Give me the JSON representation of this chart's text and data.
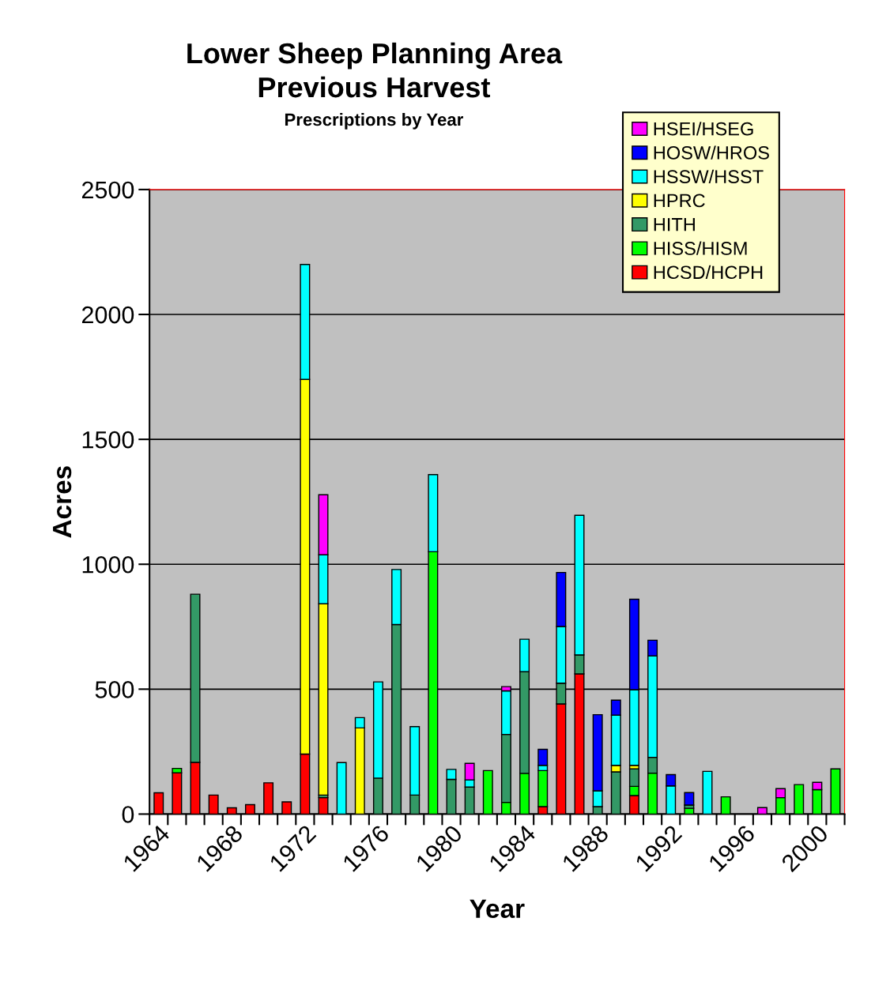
{
  "chart_data": {
    "type": "bar",
    "stacked": true,
    "title": "Lower Sheep Planning Area\nPrevious Harvest",
    "subtitle": "Prescriptions by Year",
    "xlabel": "Year",
    "ylabel": "Acres",
    "categories": [
      "1964",
      null,
      null,
      null,
      "1968",
      null,
      null,
      null,
      "1972",
      null,
      null,
      null,
      "1976",
      null,
      null,
      null,
      "1980",
      null,
      null,
      null,
      "1984",
      null,
      null,
      null,
      "1988",
      null,
      null,
      null,
      "1992",
      null,
      null,
      null,
      "1996",
      null,
      null,
      null,
      "2000",
      null
    ],
    "series": [
      {
        "name": "HCSD/HCPH",
        "color": "#ff0000",
        "values": [
          85,
          165,
          207,
          76,
          25,
          38,
          125,
          49,
          240,
          66,
          null,
          null,
          null,
          null,
          null,
          null,
          null,
          null,
          null,
          null,
          null,
          30,
          441,
          561,
          null,
          null,
          74,
          null,
          null,
          null,
          null,
          null,
          null,
          null,
          null,
          null,
          null,
          null
        ]
      },
      {
        "name": "HISS/HISM",
        "color": "#00ff00",
        "values": [
          null,
          18,
          null,
          null,
          null,
          null,
          null,
          null,
          null,
          null,
          null,
          null,
          null,
          null,
          null,
          1050,
          null,
          null,
          174,
          47,
          163,
          144,
          null,
          null,
          null,
          null,
          37,
          164,
          null,
          23,
          null,
          69,
          null,
          null,
          66,
          118,
          98,
          181
        ]
      },
      {
        "name": "HITH",
        "color": "#339966",
        "values": [
          null,
          null,
          673,
          null,
          null,
          null,
          null,
          null,
          null,
          10,
          null,
          null,
          144,
          759,
          76,
          null,
          139,
          108,
          null,
          272,
          407,
          null,
          83,
          76,
          30,
          169,
          70,
          63,
          null,
          13,
          null,
          null,
          null,
          null,
          null,
          null,
          null,
          null
        ]
      },
      {
        "name": "HPRC",
        "color": "#ffff00",
        "values": [
          null,
          null,
          null,
          null,
          null,
          null,
          null,
          null,
          1500,
          766,
          null,
          345,
          null,
          null,
          null,
          null,
          null,
          null,
          null,
          null,
          null,
          null,
          null,
          null,
          null,
          26,
          14,
          null,
          null,
          null,
          null,
          null,
          null,
          null,
          null,
          null,
          null,
          null
        ]
      },
      {
        "name": "HSSW/HSST",
        "color": "#00ffff",
        "values": [
          null,
          null,
          null,
          null,
          null,
          null,
          null,
          null,
          460,
          196,
          206,
          41,
          385,
          220,
          274,
          309,
          40,
          29,
          null,
          174,
          130,
          21,
          227,
          559,
          63,
          201,
          303,
          406,
          113,
          null,
          171,
          null,
          null,
          null,
          null,
          null,
          null,
          null
        ]
      },
      {
        "name": "HOSW/HROS",
        "color": "#0000ff",
        "values": [
          null,
          null,
          null,
          null,
          null,
          null,
          null,
          null,
          null,
          null,
          null,
          null,
          null,
          null,
          null,
          null,
          null,
          null,
          null,
          null,
          null,
          64,
          216,
          null,
          305,
          60,
          362,
          63,
          45,
          50,
          null,
          null,
          null,
          null,
          null,
          null,
          null,
          null
        ]
      },
      {
        "name": "HSEI/HSEG",
        "color": "#ff00ff",
        "values": [
          null,
          null,
          null,
          null,
          null,
          null,
          null,
          null,
          null,
          240,
          null,
          null,
          null,
          null,
          null,
          null,
          null,
          66,
          null,
          17,
          null,
          null,
          null,
          null,
          null,
          null,
          null,
          null,
          null,
          null,
          null,
          null,
          null,
          26,
          36,
          null,
          29,
          null
        ]
      }
    ],
    "ylim": [
      0,
      2500
    ],
    "yticks": [
      0,
      500,
      1000,
      1500,
      2000,
      2500
    ],
    "grid": "y",
    "legend": "top right"
  }
}
